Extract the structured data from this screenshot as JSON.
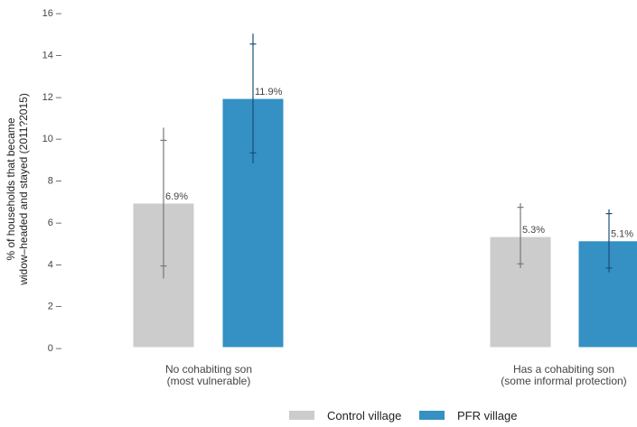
{
  "chart_data": {
    "type": "bar",
    "ylabel_lines": [
      "% of households that became",
      "widow–headed and stayed (2011?2015)"
    ],
    "ylim": [
      0,
      16
    ],
    "yticks": [
      0,
      2,
      4,
      6,
      8,
      10,
      12,
      14,
      16
    ],
    "ytick_labels": [
      "0 –",
      "2 –",
      "4 –",
      "6 –",
      "8 –",
      "10 –",
      "12 –",
      "14 –",
      "16 –"
    ],
    "grid": false,
    "legend_position": "bottom",
    "categories": [
      {
        "lines": [
          "No cohabiting son",
          "(most vulnerable)"
        ]
      },
      {
        "lines": [
          "Has a cohabiting son",
          "(some informal protection)"
        ]
      }
    ],
    "series": [
      {
        "name": "Control village",
        "color": "#cccccc",
        "errcolor": "#777777",
        "values": [
          6.9,
          5.3
        ],
        "value_labels": [
          "6.9%",
          "5.3%"
        ],
        "ci_outer": [
          [
            3.3,
            10.5
          ],
          [
            3.8,
            6.9
          ]
        ],
        "ci_inner": [
          [
            3.9,
            9.9
          ],
          [
            4.0,
            6.7
          ]
        ]
      },
      {
        "name": "PFR village",
        "color": "#3590c4",
        "errcolor": "#1a4f7a",
        "values": [
          11.9,
          5.1
        ],
        "value_labels": [
          "11.9%",
          "5.1%"
        ],
        "ci_outer": [
          [
            8.8,
            15.0
          ],
          [
            3.6,
            6.6
          ]
        ],
        "ci_inner": [
          [
            9.3,
            14.5
          ],
          [
            3.8,
            6.4
          ]
        ]
      }
    ]
  }
}
